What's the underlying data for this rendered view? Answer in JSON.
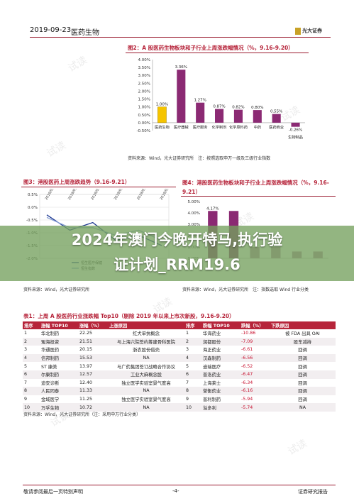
{
  "header": {
    "date": "2019-09-23",
    "section": "医药生物",
    "logo_text": "光大证券"
  },
  "watermark_text": "试读",
  "fig2": {
    "title": "图2：A 股医药生物板块和子行业上周涨跌幅情况（%，9.16-9.20）",
    "source": "资料来源：Wind，光大证券研究所　注：按照选取申万一级及三级行业指数",
    "chart_data": {
      "type": "bar",
      "categories": [
        "医药生物",
        "医疗器械",
        "医疗服务",
        "化学制剂",
        "化学原料药",
        "中药",
        "医药商业",
        "生物制品"
      ],
      "values": [
        1.0,
        3.36,
        1.27,
        0.87,
        0.82,
        0.8,
        0.55,
        -0.26
      ],
      "value_labels": [
        "1.00%",
        "3.36%",
        "1.27%",
        "0.87%",
        "0.82%",
        "0.80%",
        "0.55%",
        "-0.26%"
      ],
      "y_ticks": [
        "4.00%",
        "3.50%",
        "3.00%",
        "2.50%",
        "2.00%",
        "1.50%",
        "1.00%",
        "0.50%",
        "0.00%",
        "-0.50%"
      ],
      "ylim": [
        -0.5,
        4.0
      ],
      "colors": {
        "first": "#f5c400",
        "rest": "#8b2a73"
      }
    }
  },
  "fig3": {
    "title": "图3：港股医药上周涨跌趋势（9.16-9.21）",
    "source": "资料来源：Wind，光大证券研究所",
    "y_ticks": [
      "0.5%",
      "0.0%",
      "-0.5%",
      "-1.0%",
      "-1.5%",
      "-2.0%"
    ],
    "x_ticks": [
      "2019/09/16",
      "2019/09/17",
      "2019/09/18",
      "2019/09/19",
      "2019/09/20",
      "2019/09/21"
    ],
    "legend": [
      "恒生医疗保健",
      "恒生指数"
    ],
    "chart_data": {
      "type": "line",
      "x": [
        "2019/09/16",
        "2019/09/17",
        "2019/09/18",
        "2019/09/19",
        "2019/09/20",
        "2019/09/21"
      ],
      "ylim": [
        -2.0,
        0.5
      ],
      "series": [
        {
          "name": "恒生医疗保健",
          "values": [
            -0.3,
            -0.9,
            -0.6,
            -1.3,
            -1.1,
            -1.5
          ]
        },
        {
          "name": "恒生指数",
          "values": [
            -0.4,
            -0.8,
            -0.8,
            -1.1,
            -0.9,
            -1.3
          ]
        }
      ]
    }
  },
  "fig4": {
    "title": "图4：港股医药生物板块和子行业上周涨跌幅情况（%，9.16-9.21）",
    "source": "资料来源：Wind，光大证券研究所　注：指数选取 Wind 行业分类",
    "y_ticks": [
      "5.00%",
      "4.00%",
      "3.00%",
      "2.00%",
      "1.00%",
      "0.00%"
    ],
    "chart_data": {
      "type": "bar",
      "values": [
        4.17,
        4.17,
        1.0,
        1.0,
        0.6,
        0.6
      ],
      "value_labels": [
        "4.17%"
      ]
    }
  },
  "overlay": {
    "line1": "2024年澳门今晚开特马,执行验",
    "line2": "证计划_RRM19.6"
  },
  "table1": {
    "title": "表1：上周 A 股医药行业涨跌幅 Top10（剔除 2019 年以来上市次新股，9.16-9.20）",
    "headers": [
      "排序",
      "涨幅 TOP10",
      "涨幅（%）",
      "上涨原因",
      "排序",
      "跌幅 TOP10",
      "跌幅（%）",
      "下跌原因"
    ],
    "rows": [
      [
        "1",
        "华北制药",
        "22.25",
        "红犬单抗概念",
        "1",
        "华海药业",
        "-10.86",
        "被 FDA 出具 OAI"
      ],
      [
        "2",
        "冤海投资",
        "21.51",
        "与上海六院签约筹建骨科医院",
        "2",
        "润都股份",
        "-7.09",
        "股东减持"
      ],
      [
        "3",
        "华通医药",
        "20.15",
        "浙农股份借壳",
        "3",
        "海正药业",
        "-6.61",
        "回调"
      ],
      [
        "4",
        "信邦制药",
        "15.53",
        "NA",
        "4",
        "汉森制药",
        "-6.56",
        "回调"
      ],
      [
        "5",
        "ST 康美",
        "13.97",
        "与广药集团签订战略合作协议",
        "5",
        "迪瑞医疗",
        "-6.52",
        "回调"
      ],
      [
        "6",
        "尔康制药",
        "12.57",
        "工业大麻概念股",
        "6",
        "普洛药业",
        "-6.47",
        "回调"
      ],
      [
        "7",
        "迪安诊断",
        "12.40",
        "独立医学实验室景气度高",
        "7",
        "上海莱士",
        "-6.34",
        "回调"
      ],
      [
        "8",
        "人民同泰",
        "11.33",
        "NA",
        "8",
        "誉衡药业",
        "-6.16",
        "回调"
      ],
      [
        "9",
        "金域医学",
        "11.25",
        "独立医学实验室景气度高",
        "9",
        "普利制药",
        "-5.94",
        "回调"
      ],
      [
        "10",
        "万孚生物",
        "10.72",
        "NA",
        "10",
        "溢多利",
        "-5.74",
        "NA"
      ]
    ],
    "source": "资料来源：Wind，光大证券研究所（注：采用申万行业分类）"
  },
  "footer": {
    "left": "敬请参阅最后一页特别声明",
    "center": "-4-",
    "right": "证券研究报告"
  }
}
